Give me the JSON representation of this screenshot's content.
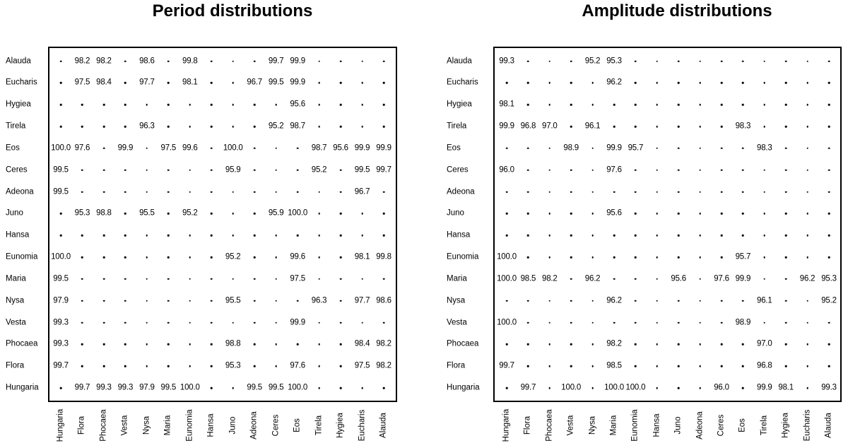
{
  "figure": {
    "background": "#ffffff",
    "text_color": "#000000",
    "border_color": "#000000",
    "missing_marker": "·"
  },
  "chart_data": [
    {
      "type": "table",
      "title": "Period distributions",
      "legend_position": "none",
      "grid": false,
      "columns": [
        "Hungaria",
        "Flora",
        "Phocaea",
        "Vesta",
        "Nysa",
        "Maria",
        "Eunomia",
        "Hansa",
        "Juno",
        "Adeona",
        "Ceres",
        "Eos",
        "Tirela",
        "Hygiea",
        "Eucharis",
        "Alauda"
      ],
      "rows": [
        {
          "label": "Alauda",
          "values": [
            null,
            "98.2",
            "98.2",
            null,
            "98.6",
            null,
            "99.8",
            null,
            null,
            null,
            "99.7",
            "99.9",
            null,
            null,
            null,
            null
          ]
        },
        {
          "label": "Eucharis",
          "values": [
            null,
            "97.5",
            "98.4",
            null,
            "97.7",
            null,
            "98.1",
            null,
            null,
            "96.7",
            "99.5",
            "99.9",
            null,
            null,
            null,
            null
          ]
        },
        {
          "label": "Hygiea",
          "values": [
            null,
            null,
            null,
            null,
            null,
            null,
            null,
            null,
            null,
            null,
            null,
            "95.6",
            null,
            null,
            null,
            null
          ]
        },
        {
          "label": "Tirela",
          "values": [
            null,
            null,
            null,
            null,
            "96.3",
            null,
            null,
            null,
            null,
            null,
            "95.2",
            "98.7",
            null,
            null,
            null,
            null
          ]
        },
        {
          "label": "Eos",
          "values": [
            "100.0",
            "97.6",
            null,
            "99.9",
            null,
            "97.5",
            "99.6",
            null,
            "100.0",
            null,
            null,
            null,
            "98.7",
            "95.6",
            "99.9",
            "99.9"
          ]
        },
        {
          "label": "Ceres",
          "values": [
            "99.5",
            null,
            null,
            null,
            null,
            null,
            null,
            null,
            "95.9",
            null,
            null,
            null,
            "95.2",
            null,
            "99.5",
            "99.7"
          ]
        },
        {
          "label": "Adeona",
          "values": [
            "99.5",
            null,
            null,
            null,
            null,
            null,
            null,
            null,
            null,
            null,
            null,
            null,
            null,
            null,
            "96.7",
            null
          ]
        },
        {
          "label": "Juno",
          "values": [
            null,
            "95.3",
            "98.8",
            null,
            "95.5",
            null,
            "95.2",
            null,
            null,
            null,
            "95.9",
            "100.0",
            null,
            null,
            null,
            null
          ]
        },
        {
          "label": "Hansa",
          "values": [
            null,
            null,
            null,
            null,
            null,
            null,
            null,
            null,
            null,
            null,
            null,
            null,
            null,
            null,
            null,
            null
          ]
        },
        {
          "label": "Eunomia",
          "values": [
            "100.0",
            null,
            null,
            null,
            null,
            null,
            null,
            null,
            "95.2",
            null,
            null,
            "99.6",
            null,
            null,
            "98.1",
            "99.8"
          ]
        },
        {
          "label": "Maria",
          "values": [
            "99.5",
            null,
            null,
            null,
            null,
            null,
            null,
            null,
            null,
            null,
            null,
            "97.5",
            null,
            null,
            null,
            null
          ]
        },
        {
          "label": "Nysa",
          "values": [
            "97.9",
            null,
            null,
            null,
            null,
            null,
            null,
            null,
            "95.5",
            null,
            null,
            null,
            "96.3",
            null,
            "97.7",
            "98.6"
          ]
        },
        {
          "label": "Vesta",
          "values": [
            "99.3",
            null,
            null,
            null,
            null,
            null,
            null,
            null,
            null,
            null,
            null,
            "99.9",
            null,
            null,
            null,
            null
          ]
        },
        {
          "label": "Phocaea",
          "values": [
            "99.3",
            null,
            null,
            null,
            null,
            null,
            null,
            null,
            "98.8",
            null,
            null,
            null,
            null,
            null,
            "98.4",
            "98.2"
          ]
        },
        {
          "label": "Flora",
          "values": [
            "99.7",
            null,
            null,
            null,
            null,
            null,
            null,
            null,
            "95.3",
            null,
            null,
            "97.6",
            null,
            null,
            "97.5",
            "98.2"
          ]
        },
        {
          "label": "Hungaria",
          "values": [
            null,
            "99.7",
            "99.3",
            "99.3",
            "97.9",
            "99.5",
            "100.0",
            null,
            null,
            "99.5",
            "99.5",
            "100.0",
            null,
            null,
            null,
            null
          ]
        }
      ]
    },
    {
      "type": "table",
      "title": "Amplitude distributions",
      "legend_position": "none",
      "grid": false,
      "columns": [
        "Hungaria",
        "Flora",
        "Phocaea",
        "Vesta",
        "Nysa",
        "Maria",
        "Eunomia",
        "Hansa",
        "Juno",
        "Adeona",
        "Ceres",
        "Eos",
        "Tirela",
        "Hygiea",
        "Eucharis",
        "Alauda"
      ],
      "rows": [
        {
          "label": "Alauda",
          "values": [
            "99.3",
            null,
            null,
            null,
            "95.2",
            "95.3",
            null,
            null,
            null,
            null,
            null,
            null,
            null,
            null,
            null,
            null
          ]
        },
        {
          "label": "Eucharis",
          "values": [
            null,
            null,
            null,
            null,
            null,
            "96.2",
            null,
            null,
            null,
            null,
            null,
            null,
            null,
            null,
            null,
            null
          ]
        },
        {
          "label": "Hygiea",
          "values": [
            "98.1",
            null,
            null,
            null,
            null,
            null,
            null,
            null,
            null,
            null,
            null,
            null,
            null,
            null,
            null,
            null
          ]
        },
        {
          "label": "Tirela",
          "values": [
            "99.9",
            "96.8",
            "97.0",
            null,
            "96.1",
            null,
            null,
            null,
            null,
            null,
            null,
            "98.3",
            null,
            null,
            null,
            null
          ]
        },
        {
          "label": "Eos",
          "values": [
            null,
            null,
            null,
            "98.9",
            null,
            "99.9",
            "95.7",
            null,
            null,
            null,
            null,
            null,
            "98.3",
            null,
            null,
            null
          ]
        },
        {
          "label": "Ceres",
          "values": [
            "96.0",
            null,
            null,
            null,
            null,
            "97.6",
            null,
            null,
            null,
            null,
            null,
            null,
            null,
            null,
            null,
            null
          ]
        },
        {
          "label": "Adeona",
          "values": [
            null,
            null,
            null,
            null,
            null,
            null,
            null,
            null,
            null,
            null,
            null,
            null,
            null,
            null,
            null,
            null
          ]
        },
        {
          "label": "Juno",
          "values": [
            null,
            null,
            null,
            null,
            null,
            "95.6",
            null,
            null,
            null,
            null,
            null,
            null,
            null,
            null,
            null,
            null
          ]
        },
        {
          "label": "Hansa",
          "values": [
            null,
            null,
            null,
            null,
            null,
            null,
            null,
            null,
            null,
            null,
            null,
            null,
            null,
            null,
            null,
            null
          ]
        },
        {
          "label": "Eunomia",
          "values": [
            "100.0",
            null,
            null,
            null,
            null,
            null,
            null,
            null,
            null,
            null,
            null,
            "95.7",
            null,
            null,
            null,
            null
          ]
        },
        {
          "label": "Maria",
          "values": [
            "100.0",
            "98.5",
            "98.2",
            null,
            "96.2",
            null,
            null,
            null,
            "95.6",
            null,
            "97.6",
            "99.9",
            null,
            null,
            "96.2",
            "95.3"
          ]
        },
        {
          "label": "Nysa",
          "values": [
            null,
            null,
            null,
            null,
            null,
            "96.2",
            null,
            null,
            null,
            null,
            null,
            null,
            "96.1",
            null,
            null,
            "95.2"
          ]
        },
        {
          "label": "Vesta",
          "values": [
            "100.0",
            null,
            null,
            null,
            null,
            null,
            null,
            null,
            null,
            null,
            null,
            "98.9",
            null,
            null,
            null,
            null
          ]
        },
        {
          "label": "Phocaea",
          "values": [
            null,
            null,
            null,
            null,
            null,
            "98.2",
            null,
            null,
            null,
            null,
            null,
            null,
            "97.0",
            null,
            null,
            null
          ]
        },
        {
          "label": "Flora",
          "values": [
            "99.7",
            null,
            null,
            null,
            null,
            "98.5",
            null,
            null,
            null,
            null,
            null,
            null,
            "96.8",
            null,
            null,
            null
          ]
        },
        {
          "label": "Hungaria",
          "values": [
            null,
            "99.7",
            null,
            "100.0",
            null,
            "100.0",
            "100.0",
            null,
            null,
            null,
            "96.0",
            null,
            "99.9",
            "98.1",
            null,
            "99.3"
          ]
        }
      ]
    }
  ]
}
